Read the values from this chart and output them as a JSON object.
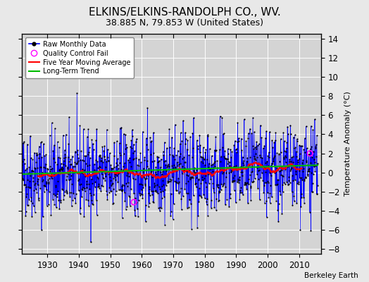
{
  "title": "ELKINS/ELKINS-RANDOLPH CO., WV.",
  "subtitle": "38.885 N, 79.853 W (United States)",
  "ylabel": "Temperature Anomaly (°C)",
  "credit": "Berkeley Earth",
  "xlim": [
    1922,
    2017
  ],
  "ylim": [
    -8.5,
    14.5
  ],
  "yticks": [
    -8,
    -6,
    -4,
    -2,
    0,
    2,
    4,
    6,
    8,
    10,
    12,
    14
  ],
  "xticks": [
    1930,
    1940,
    1950,
    1960,
    1970,
    1980,
    1990,
    2000,
    2010
  ],
  "bg_color": "#e8e8e8",
  "plot_bg_color": "#d4d4d4",
  "grid_color": "#ffffff",
  "line_color": "#0000ff",
  "dot_color": "#000000",
  "ma_color": "#ff0000",
  "trend_color": "#00bb00",
  "qc_color": "#ff00ff",
  "seed": 42,
  "start_year": 1922,
  "n_months": 1128,
  "ma_window": 60,
  "qc_points": [
    [
      1957.5,
      -3.1
    ],
    [
      2013.5,
      2.0
    ]
  ],
  "title_fontsize": 11,
  "subtitle_fontsize": 9,
  "label_fontsize": 8,
  "tick_fontsize": 8.5
}
